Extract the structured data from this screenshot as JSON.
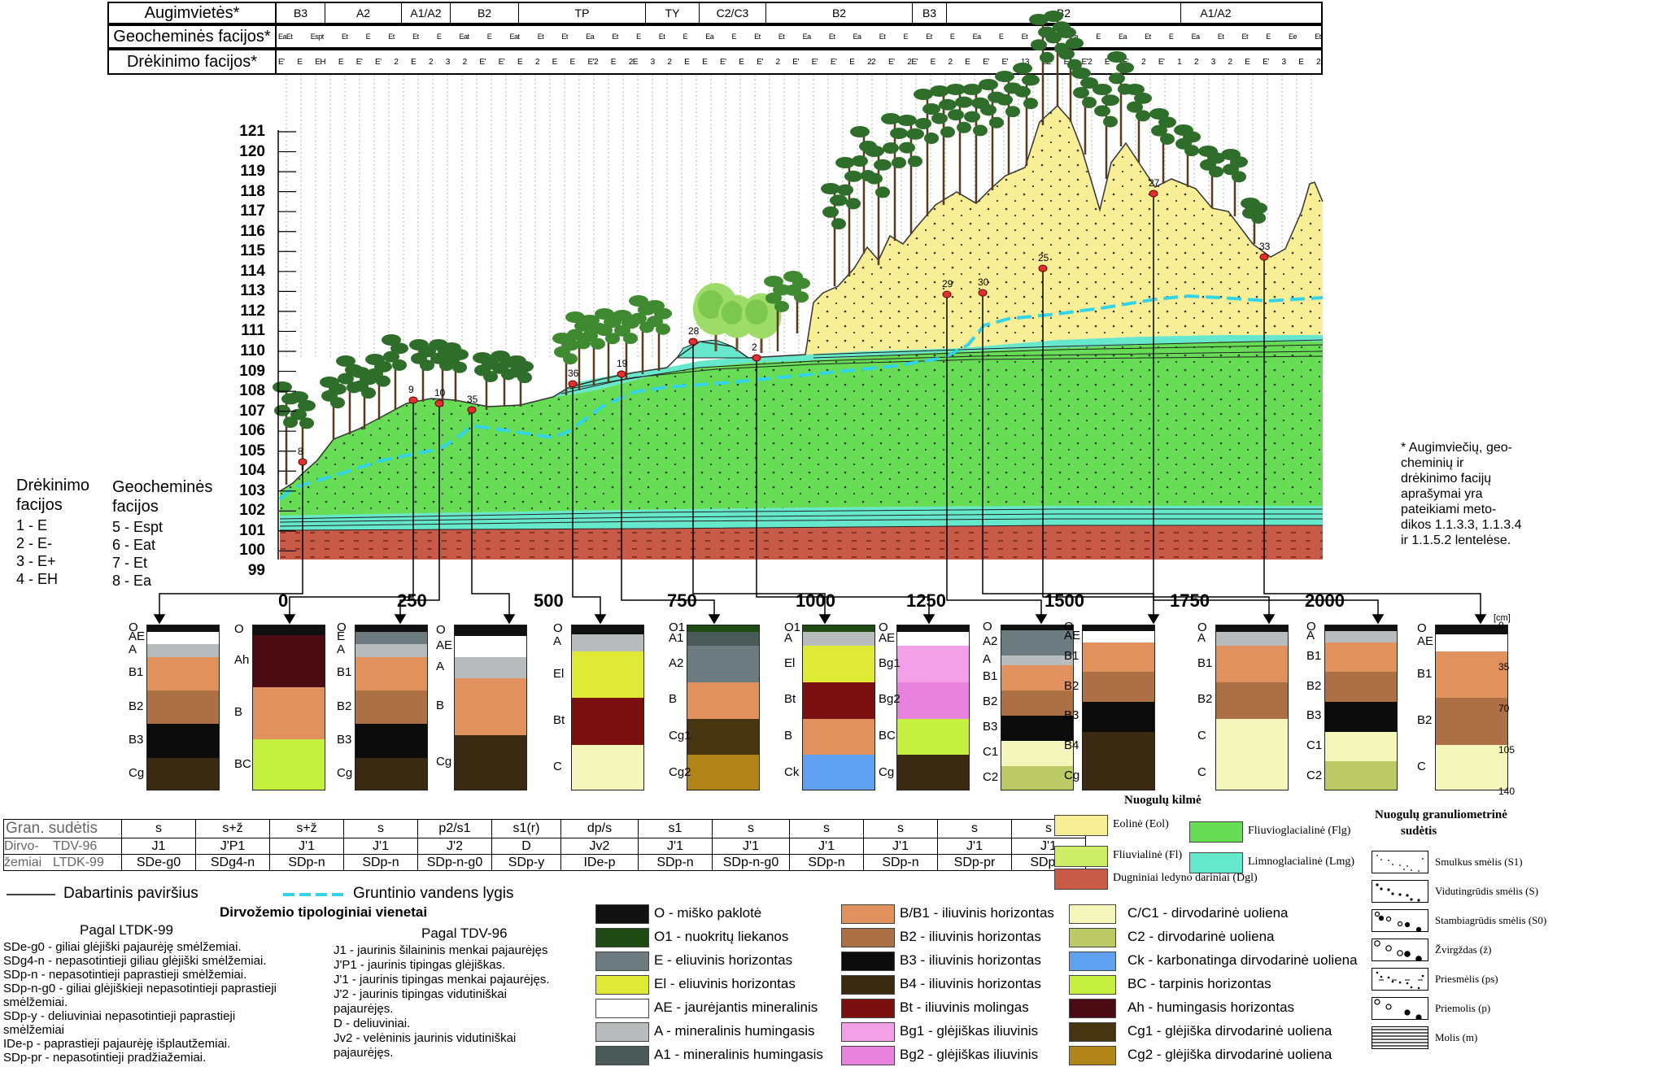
{
  "header": {
    "row1_label": "Augimvietės*",
    "row2_label": "Geocheminės facijos*",
    "row3_label": "Drėkinimo facijos*",
    "habitats": [
      "B3",
      "A2",
      "A1/A2",
      "B2",
      "TP",
      "TY",
      "C2/C3",
      "B2",
      "B3",
      "B2",
      "A1/A2"
    ],
    "geochem": [
      "EaEt",
      "Espt",
      "Et",
      "E",
      "Et",
      "Et",
      "E",
      "Eat",
      "E",
      "Eat",
      "Et",
      "Et",
      "Ea",
      "Et",
      "E",
      "Et",
      "E",
      "Ea",
      "E",
      "Et",
      "Et",
      "Ea",
      "Et",
      "Ea",
      "Et",
      "E",
      "Et",
      "E",
      "Ea",
      "E",
      "Et",
      "Et",
      "Ea",
      "E",
      "Ea",
      "Et",
      "E",
      "Ea",
      "Et",
      "Et",
      "E",
      "Ee",
      "Et"
    ],
    "moisture": [
      "E'",
      "E",
      "EH",
      "E",
      "E'",
      "E'",
      "2",
      "E",
      "2",
      "3",
      "2",
      "E'",
      "E'",
      "E",
      "2",
      "E",
      "E",
      "E'2",
      "E",
      "2E",
      "3",
      "2",
      "E",
      "E",
      "E'",
      "E",
      "E'",
      "2",
      "E'",
      "E'",
      "E'",
      "E",
      "22",
      "E'",
      "2E'",
      "E",
      "2",
      "E",
      "E'",
      "E'",
      "13",
      "2E",
      "E",
      "E'2",
      "E",
      "E'",
      "2",
      "E'",
      "1",
      "2",
      "3",
      "2",
      "E",
      "E'",
      "3",
      "E",
      "2"
    ]
  },
  "y_axis": {
    "ticks": [
      "121",
      "120",
      "119",
      "118",
      "117",
      "116",
      "115",
      "114",
      "113",
      "112",
      "111",
      "110",
      "109",
      "108",
      "107",
      "106",
      "105",
      "104",
      "103",
      "102",
      "101",
      "100",
      "99"
    ]
  },
  "x_axis": {
    "ticks": [
      "0",
      "250",
      "500",
      "750",
      "1000",
      "1250",
      "1500",
      "1750",
      "2000"
    ]
  },
  "points": [
    "8",
    "9",
    "10",
    "35",
    "36",
    "19",
    "28",
    "2",
    "29",
    "30",
    "25",
    "27",
    "33"
  ],
  "left_legend": {
    "col1_title_line1": "Drėkinimo",
    "col1_title_line2": "facijos",
    "col1_items": [
      "1 - E",
      "2 - E-",
      "3 - E+",
      "4 - EH"
    ],
    "col2_title_line1": "Geocheminės",
    "col2_title_line2": "facijos",
    "col2_items": [
      "5 - Espt",
      "6 - Eat",
      "7 - Et",
      "8 - Ea"
    ]
  },
  "note": [
    "* Augimviečių, geo-",
    "cheminių ir",
    "drėkinimo facijų",
    "aprašymai yra",
    "pateikiami meto-",
    "dikos 1.1.3.3, 1.1.3.4",
    "ir 1.1.5.2 lentelėse."
  ],
  "profiles": [
    {
      "labels": [
        "O",
        "AE",
        "A",
        "B1",
        "B2",
        "B3",
        "Cg"
      ]
    },
    {
      "labels": [
        "O",
        "Ah",
        "B",
        "BC"
      ]
    },
    {
      "labels": [
        "O",
        "E",
        "A",
        "B1",
        "B2",
        "B3",
        "Cg"
      ]
    },
    {
      "labels": [
        "O",
        "AE",
        "A",
        "B",
        "Cg"
      ]
    },
    {
      "labels": [
        "O",
        "A",
        "El",
        "Bt",
        "C"
      ]
    },
    {
      "labels": [
        "O1",
        "A1",
        "A2",
        "B",
        "Cg1",
        "Cg2"
      ]
    },
    {
      "labels": [
        "O1",
        "A",
        "El",
        "Bt",
        "B",
        "Ck"
      ]
    },
    {
      "labels": [
        "O",
        "AE",
        "Bg1",
        "Bg2",
        "BC",
        "Cg"
      ]
    },
    {
      "labels": [
        "O",
        "A2",
        "A",
        "B1",
        "B2",
        "B3",
        "C1",
        "C2"
      ]
    },
    {
      "labels": [
        "O",
        "AE",
        "B1",
        "B2",
        "B3",
        "B4",
        "Cg"
      ]
    },
    {
      "labels": [
        "O",
        "A",
        "B1",
        "B2",
        "C",
        "C"
      ]
    },
    {
      "labels": [
        "O",
        "A",
        "B1",
        "B2",
        "B3",
        "C1",
        "C2"
      ]
    },
    {
      "labels": [
        "O",
        "AE",
        "B1",
        "B2",
        "C"
      ]
    }
  ],
  "depth_scale": {
    "unit": "[cm]",
    "ticks": [
      "0",
      "35",
      "70",
      "105",
      "140"
    ]
  },
  "table": {
    "row1_label": "Gran. sudėtis",
    "row2_label_a": "Dirvo-",
    "row2_label_b": "TDV-96",
    "row3_label_a": "žemiai",
    "row3_label_b": "LTDK-99",
    "gran": [
      "s",
      "s+ž",
      "s+ž",
      "s",
      "p2/s1",
      "s1(r)",
      "dp/s",
      "s1",
      "s",
      "s",
      "s",
      "s",
      "s"
    ],
    "tdv": [
      "J1",
      "J'P1",
      "J'1",
      "J'1",
      "J'2",
      "D",
      "Jv2",
      "J'1",
      "J'1",
      "J'1",
      "J'1",
      "J'1",
      "J'1"
    ],
    "ltdk": [
      "SDe-g0",
      "SDg4-n",
      "SDp-n",
      "SDp-n",
      "SDp-n-g0",
      "SDp-y",
      "IDe-p",
      "SDp-n",
      "SDp-n-g0",
      "SDp-n",
      "SDp-n",
      "SDp-pr",
      "SDp-n"
    ]
  },
  "lines_legend": {
    "surface": "Dabartinis paviršius",
    "groundwater": "Gruntinio vandens lygis"
  },
  "origin": {
    "title": "Nuogulų kilmė",
    "items": [
      {
        "label": "Eolinė (Eol)",
        "color": "#f8ee96"
      },
      {
        "label": "Fliuvioglacialinė (Flg)",
        "color": "#66dd55"
      },
      {
        "label": "Fliuvialinė (Fl)",
        "color": "#cdee66"
      },
      {
        "label": "Limnoglacialinė (Lmg)",
        "color": "#66e8cc"
      },
      {
        "label": "Dugniniai ledyno dariniai (Dgl)",
        "color": "#c85a48"
      }
    ]
  },
  "granulometry": {
    "title_line1": "Nuogulų granuliometrinė",
    "title_line2": "sudėtis",
    "items": [
      "Smulkus smėlis (S1)",
      "Vidutingrūdis smėlis (S)",
      "Stambiagrūdis smėlis (S0)",
      "Žvirgždas (ž)",
      "Priesmėlis (ps)",
      "Priemolis (p)",
      "Molis (m)"
    ]
  },
  "soil_units": {
    "title": "Dirvožemio tipologiniai vienetai",
    "ltdk_title": "Pagal LTDK-99",
    "tdv_title": "Pagal TDV-96",
    "ltdk_items": [
      "SDe-g0 - giliai glėjiški pajaurėję smėlžemiai.",
      "SDg4-n - nepasotintieji giliau glėjiški smėlžemiai.",
      "SDp-n - nepasotintieji paprastieji smėlžemiai.",
      "SDp-n-g0 - giliai glėjiškieji nepasotintieji paprastieji",
      "smėlžemiai.",
      "SDp-y - deliuviniai nepasotintieji paprastieji",
      "smėlžemiai",
      "IDe-p - paprastieji pajaurėję išplautžemiai.",
      "SDp-pr - nepasotintieji pradžiažemiai."
    ],
    "tdv_items": [
      "J1 - jaurinis šilaininis menkai pajaurėjęs",
      "J'P1 - jaurinis tipingas glėjiškas.",
      "J'1 - jaurinis tipingas menkai pajaurėjęs.",
      "J'2 - jaurinis tipingas vidutiniškai",
      "pajaurėjęs.",
      "D - deliuviniai.",
      "Jv2 - velėninis jaurinis vidutiniškai",
      "pajaurėjęs."
    ]
  },
  "horizons": [
    {
      "label": "O - miško paklotė",
      "color": "#101010"
    },
    {
      "label": "O1 - nuokritų liekanos",
      "color": "#1e4a14"
    },
    {
      "label": "E - eliuvinis horizontas",
      "color": "#6b7b80"
    },
    {
      "label": "El - eliuvinis horizontas",
      "color": "#dfea36"
    },
    {
      "label": "AE - jaurėjantis mineralinis",
      "color": "#ffffff"
    },
    {
      "label": "A - mineralinis humingasis",
      "color": "#b8bcbc"
    },
    {
      "label": "A1 - mineralinis humingasis",
      "color": "#4a5a58"
    },
    {
      "label": "B/B1 - iliuvinis horizontas",
      "color": "#e0915e"
    },
    {
      "label": "B2 - iliuvinis horizontas",
      "color": "#ad7045"
    },
    {
      "label": "B3 - iliuvinis horizontas",
      "color": "#0c0c0c"
    },
    {
      "label": "B4 - iliuvinis horizontas",
      "color": "#3a2a12"
    },
    {
      "label": "Bt - iliuvinis molingas",
      "color": "#7a1010"
    },
    {
      "label": "Bg1 - glėjiškas iliuvinis",
      "color": "#f4a0e8"
    },
    {
      "label": "Bg2 - glėjiškas iliuvinis",
      "color": "#e882dc"
    },
    {
      "label": "C/C1 - dirvodarinė uoliena",
      "color": "#f5f6bc"
    },
    {
      "label": "C2 - dirvodarinė uoliena",
      "color": "#bccb66"
    },
    {
      "label": "Ck - karbonatinga dirvodarinė uoliena",
      "color": "#5fa0f0"
    },
    {
      "label": "BC - tarpinis horizontas",
      "color": "#c6f040"
    },
    {
      "label": "Ah - humingasis horizontas",
      "color": "#4a0c12"
    },
    {
      "label": "Cg1 - glėjiška dirvodarinė uoliena",
      "color": "#473410"
    },
    {
      "label": "Cg2 - glėjiška dirvodarinė uoliena",
      "color": "#b08416"
    }
  ]
}
